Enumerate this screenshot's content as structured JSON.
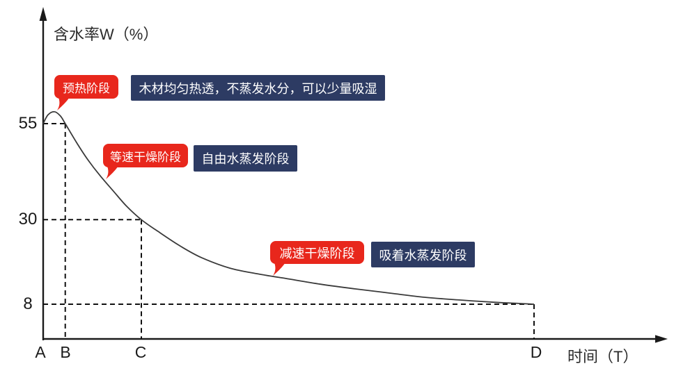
{
  "colors": {
    "stage_label_bg": "#e8271c",
    "stage_desc_bg": "#2d3b63",
    "label_text": "#ffffff",
    "axis": "#1a1a1a",
    "curve": "#3a3a3a",
    "background": "#ffffff"
  },
  "chart_data": {
    "type": "line",
    "title": "",
    "ylabel": "含水率W（%）",
    "xlabel": "时间（T）",
    "ylim": [
      0,
      63
    ],
    "xlim": [
      0,
      107
    ],
    "grid": false,
    "legend": "none",
    "y_ticks": [
      {
        "label": "55",
        "value": 55
      },
      {
        "label": "30",
        "value": 30
      },
      {
        "label": "8",
        "value": 8
      }
    ],
    "x_ticks": [
      {
        "label": "A",
        "t": 0
      },
      {
        "label": "B",
        "t": 4.5
      },
      {
        "label": "C",
        "t": 20
      },
      {
        "label": "D",
        "t": 100
      }
    ],
    "series": [
      {
        "name": "含水率曲线",
        "points": [
          [
            0,
            55
          ],
          [
            1,
            57.3
          ],
          [
            2.3,
            58.1
          ],
          [
            3.5,
            57
          ],
          [
            4.5,
            55
          ],
          [
            6.8,
            50.1
          ],
          [
            9.1,
            45.6
          ],
          [
            11.5,
            41.6
          ],
          [
            14.2,
            37.6
          ],
          [
            17,
            33.5
          ],
          [
            20,
            30
          ],
          [
            23.8,
            26.6
          ],
          [
            28.1,
            23
          ],
          [
            32.3,
            20.1
          ],
          [
            38,
            17.4
          ],
          [
            43.7,
            15.9
          ],
          [
            49.4,
            14.7
          ],
          [
            56.5,
            13.2
          ],
          [
            63.5,
            12
          ],
          [
            70.6,
            10.9
          ],
          [
            77.7,
            9.8
          ],
          [
            84.8,
            9.1
          ],
          [
            91.9,
            8.5
          ],
          [
            96.9,
            8.2
          ],
          [
            100,
            8
          ]
        ]
      }
    ],
    "guides": {
      "horizontal": [
        {
          "W": 55,
          "t_end": 4.5
        },
        {
          "W": 30,
          "t_end": 20
        },
        {
          "W": 8,
          "t_end": 100
        }
      ],
      "vertical": [
        {
          "t": 4.5,
          "W_top": 55
        },
        {
          "t": 20,
          "W_top": 30
        },
        {
          "t": 100,
          "W_top": 8
        }
      ]
    },
    "annotations": [
      {
        "stage": "预热阶段",
        "description": "木材均匀热透，不蒸发水分，可以少量吸湿"
      },
      {
        "stage": "等速干燥阶段",
        "description": "自由水蒸发阶段"
      },
      {
        "stage": "减速干燥阶段",
        "description": "吸着水蒸发阶段"
      }
    ]
  }
}
